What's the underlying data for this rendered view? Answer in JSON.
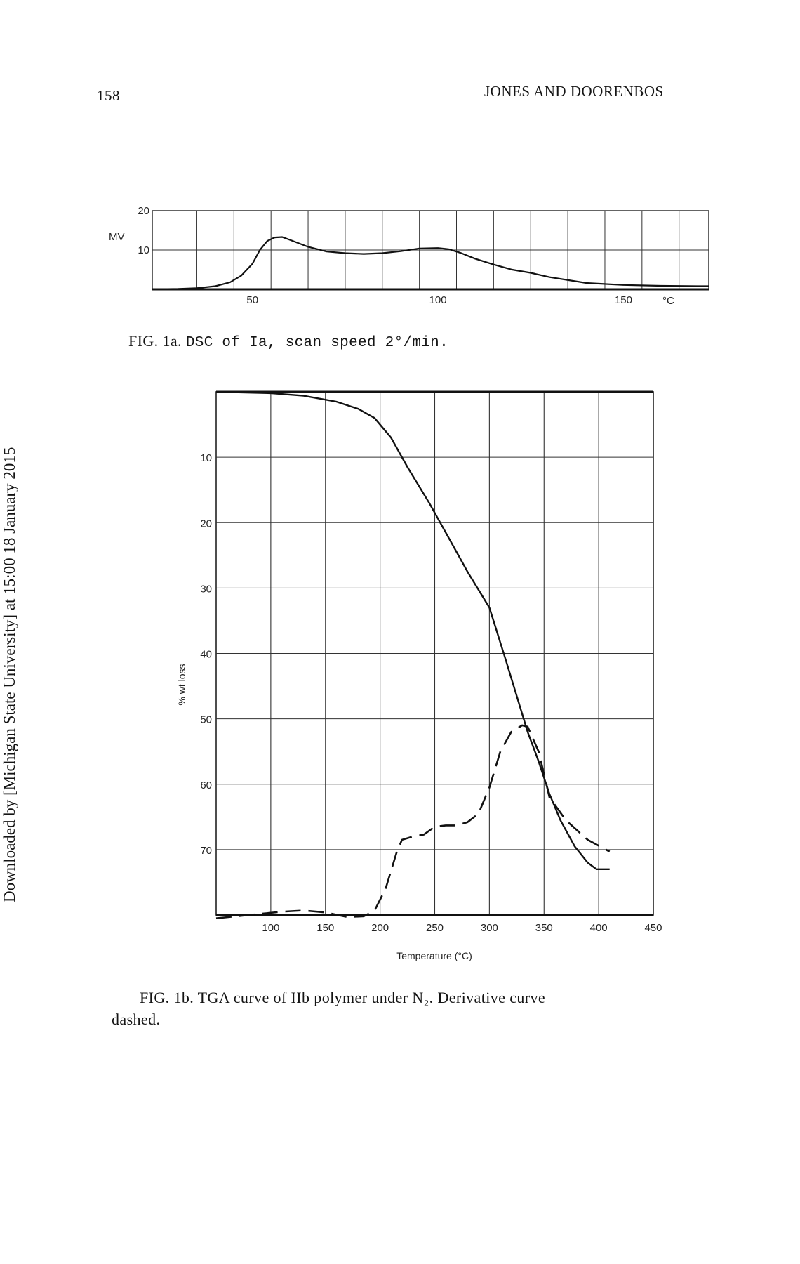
{
  "header": {
    "page_number": "158",
    "running_head": "JONES AND DOORENBOS"
  },
  "side_note": "Downloaded by [Michigan State University] at 15:00 18 January 2015",
  "figure_1a": {
    "caption_label": "FIG. 1a.",
    "caption_text": "DSC of Ia, scan speed 2°/min."
  },
  "figure_1b": {
    "caption_label": "FIG. 1b.",
    "caption_text": "TGA curve of IIb polymer under N₂.  Derivative curve",
    "caption_tail": "dashed."
  },
  "chart_data": [
    {
      "type": "line",
      "title": "",
      "ylabel": "MV",
      "x_unit_label": "°C",
      "xlim": [
        23,
        173
      ],
      "ylim": [
        0,
        20
      ],
      "x_ticks": [
        50,
        100,
        150
      ],
      "y_ticks": [
        10,
        20
      ],
      "grid": true,
      "series": [
        {
          "x": [
            23,
            30,
            35,
            40,
            44,
            47,
            50,
            52,
            54,
            56,
            58,
            60,
            65,
            70,
            75,
            80,
            85,
            90,
            95,
            100,
            103,
            106,
            110,
            115,
            120,
            125,
            130,
            140,
            150,
            160,
            170,
            173
          ],
          "y": [
            0,
            0.1,
            0.3,
            0.8,
            1.8,
            3.5,
            6.5,
            10,
            12.3,
            13.2,
            13.3,
            12.6,
            10.8,
            9.6,
            9.2,
            9.0,
            9.2,
            9.7,
            10.4,
            10.5,
            10.2,
            9.3,
            7.8,
            6.3,
            5.0,
            4.2,
            3.1,
            1.6,
            1.1,
            0.9,
            0.8,
            0.8
          ]
        }
      ]
    },
    {
      "type": "line",
      "title": "",
      "xlabel": "Temperature (°C)",
      "ylabel": "% wt loss",
      "xlim": [
        50,
        450
      ],
      "ylim": [
        0,
        80
      ],
      "y_inverted": true,
      "x_ticks": [
        100,
        150,
        200,
        250,
        300,
        350,
        400,
        450
      ],
      "y_ticks": [
        10,
        20,
        30,
        40,
        50,
        60,
        70
      ],
      "grid": true,
      "series": [
        {
          "style": "solid",
          "x": [
            50,
            100,
            130,
            160,
            180,
            195,
            210,
            225,
            245,
            265,
            280,
            300,
            315,
            325,
            335,
            345,
            355,
            365,
            378,
            390,
            398,
            410
          ],
          "y": [
            0,
            0.2,
            0.6,
            1.5,
            2.6,
            4,
            7,
            11.5,
            17,
            23,
            27.5,
            33,
            41,
            46.5,
            52,
            56.5,
            61.5,
            65.5,
            69.5,
            72,
            73,
            73
          ]
        },
        {
          "style": "dashed",
          "x": [
            50,
            80,
            110,
            130,
            150,
            170,
            185,
            195,
            205,
            215,
            220,
            230,
            240,
            250,
            260,
            270,
            280,
            290,
            300,
            310,
            320,
            330,
            335,
            345,
            355,
            370,
            390,
            410
          ],
          "y": [
            80.5,
            80,
            79.5,
            79.3,
            79.6,
            80.3,
            80.2,
            79.3,
            76,
            70.5,
            68.5,
            68,
            67.7,
            66.5,
            66.3,
            66.3,
            65.8,
            64.5,
            60.5,
            55,
            52,
            51,
            51.2,
            55,
            62,
            65.5,
            68.5,
            70.3
          ]
        }
      ]
    }
  ]
}
